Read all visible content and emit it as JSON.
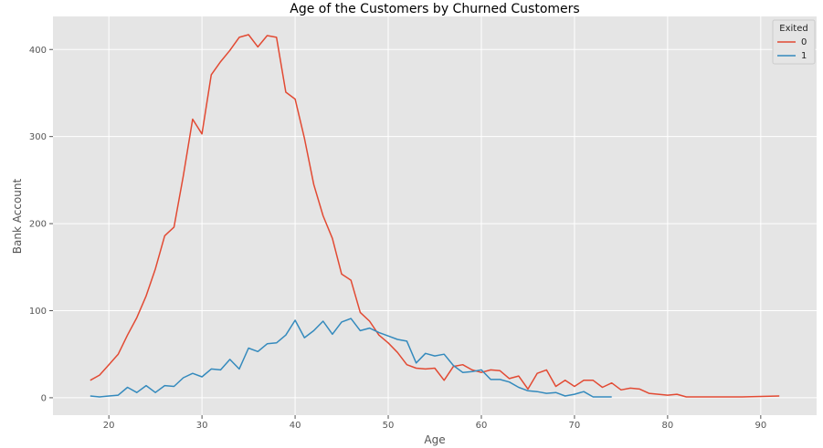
{
  "chart_data": {
    "type": "line",
    "title": "Age of the Customers by Churned Customers",
    "xlabel": "Age",
    "ylabel": "Bank Account",
    "xlim": [
      14,
      96
    ],
    "ylim": [
      -20,
      438
    ],
    "xticks": [
      20,
      30,
      40,
      50,
      60,
      70,
      80,
      90
    ],
    "yticks": [
      0,
      100,
      200,
      300,
      400
    ],
    "grid": true,
    "legend": {
      "title": "Exited",
      "placement": "top-right"
    },
    "colors": {
      "background": "#e5e5e5",
      "grid": "#ffffff"
    },
    "series": [
      {
        "name": "0",
        "color": "#e24a33",
        "x": [
          18,
          19,
          20,
          21,
          22,
          23,
          24,
          25,
          26,
          27,
          28,
          29,
          30,
          31,
          32,
          33,
          34,
          35,
          36,
          37,
          38,
          39,
          40,
          41,
          42,
          43,
          44,
          45,
          46,
          47,
          48,
          49,
          50,
          51,
          52,
          53,
          54,
          55,
          56,
          57,
          58,
          59,
          60,
          61,
          62,
          63,
          64,
          65,
          66,
          67,
          68,
          69,
          70,
          71,
          72,
          73,
          74,
          75,
          76,
          77,
          78,
          79,
          80,
          81,
          82,
          83,
          84,
          85,
          88,
          92
        ],
        "values": [
          20,
          26,
          38,
          50,
          72,
          92,
          117,
          148,
          186,
          196,
          255,
          320,
          303,
          371,
          386,
          399,
          414,
          417,
          403,
          416,
          414,
          351,
          343,
          298,
          245,
          209,
          183,
          142,
          135,
          98,
          88,
          72,
          63,
          52,
          38,
          34,
          33,
          34,
          20,
          36,
          38,
          32,
          29,
          32,
          31,
          22,
          25,
          10,
          28,
          32,
          13,
          20,
          13,
          20,
          20,
          12,
          17,
          9,
          11,
          10,
          5,
          4,
          3,
          4,
          1,
          1,
          1,
          1,
          1,
          2
        ]
      },
      {
        "name": "1",
        "color": "#348abd",
        "x": [
          18,
          19,
          20,
          21,
          22,
          23,
          24,
          25,
          26,
          27,
          28,
          29,
          30,
          31,
          32,
          33,
          34,
          35,
          36,
          37,
          38,
          39,
          40,
          41,
          42,
          43,
          44,
          45,
          46,
          47,
          48,
          49,
          50,
          51,
          52,
          53,
          54,
          55,
          56,
          57,
          58,
          59,
          60,
          61,
          62,
          63,
          64,
          65,
          66,
          67,
          68,
          69,
          70,
          71,
          72,
          73,
          74
        ],
        "values": [
          2,
          1,
          2,
          3,
          12,
          6,
          14,
          6,
          14,
          13,
          23,
          28,
          24,
          33,
          32,
          44,
          33,
          57,
          53,
          62,
          63,
          72,
          89,
          69,
          77,
          88,
          73,
          87,
          91,
          77,
          80,
          75,
          71,
          67,
          65,
          40,
          51,
          48,
          50,
          37,
          29,
          30,
          32,
          21,
          21,
          18,
          12,
          8,
          7,
          5,
          6,
          2,
          4,
          7,
          1,
          1,
          1
        ]
      }
    ]
  }
}
